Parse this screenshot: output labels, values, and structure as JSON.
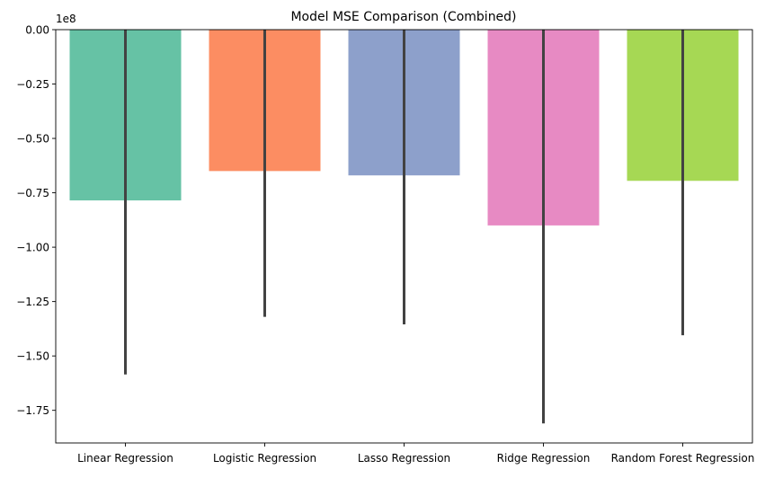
{
  "chart_data": {
    "type": "bar",
    "title": "Model MSE Comparison (Combined)",
    "xlabel": "",
    "ylabel": "",
    "scale_offset_label": "1e8",
    "categories": [
      "Linear Regression",
      "Logistic Regression",
      "Lasso Regression",
      "Ridge Regression",
      "Random Forest Regression"
    ],
    "values": [
      -0.785,
      -0.65,
      -0.67,
      -0.9,
      -0.695
    ],
    "error_low": [
      -1.585,
      -1.32,
      -1.355,
      -1.81,
      -1.405
    ],
    "error_high": [
      0.0,
      0.0,
      0.0,
      0.0,
      0.0
    ],
    "ylim": [
      -1.9,
      0.0
    ],
    "yticks": [
      0.0,
      -0.25,
      -0.5,
      -0.75,
      -1.0,
      -1.25,
      -1.5,
      -1.75
    ],
    "ytick_labels": [
      "0.00",
      "−0.25",
      "−0.50",
      "−0.75",
      "−1.00",
      "−1.25",
      "−1.50",
      "−1.75"
    ],
    "grid": false,
    "colors": [
      "#66c2a5",
      "#fc8d62",
      "#8da0cb",
      "#e78ac3",
      "#a6d854"
    ],
    "error_color": "#424242"
  }
}
